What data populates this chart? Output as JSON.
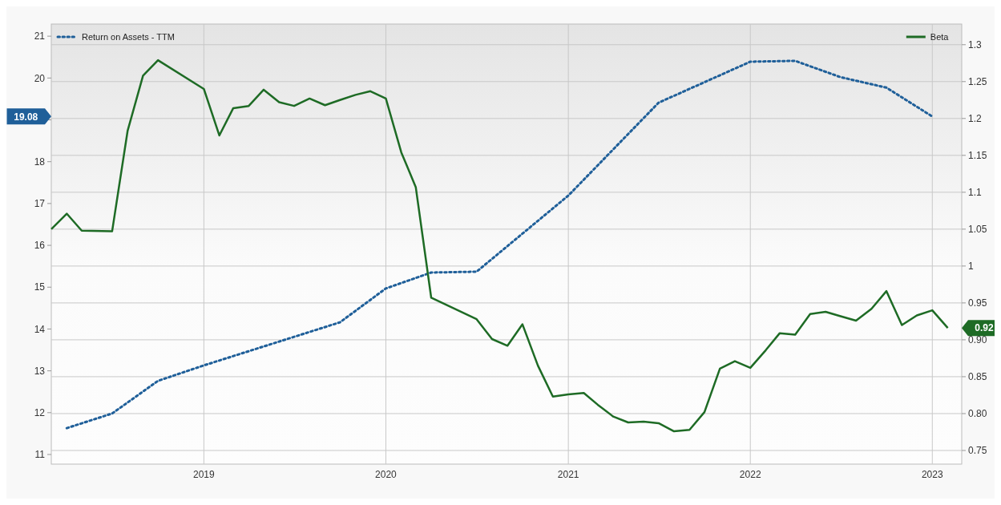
{
  "chart_data": {
    "type": "line",
    "xlim": [
      "2018-03-01",
      "2023-03-01"
    ],
    "xticks": [
      "2019",
      "2020",
      "2021",
      "2022",
      "2023"
    ],
    "ylim": [
      10.77,
      21.29
    ],
    "yticks": [
      11,
      12,
      13,
      14,
      15,
      16,
      17,
      18,
      {
        "value": 19,
        "label": null
      },
      20,
      21
    ],
    "annotations": [
      "19.08",
      "0.92"
    ],
    "y2lim": [
      0.7315,
      1.328
    ],
    "y2ticks": [
      1.3,
      1.25,
      1.2,
      1.15,
      1.1,
      1.05,
      1,
      0.95,
      {
        "value": 0.9,
        "label": "0.90"
      },
      {
        "value": 0.85,
        "label": "0.85"
      },
      {
        "value": 0.8,
        "label": "0.80"
      },
      0.75
    ],
    "grid": true,
    "legend": "top",
    "series": [
      {
        "name": "Return on Assets - TTM",
        "color": "#1f5f99",
        "line_style": "dotted",
        "x": [
          "2018-04",
          "2018-07",
          "2018-10",
          "2019-01",
          "2019-10",
          "2020-01",
          "2020-04",
          "2020-07",
          "2021-01",
          "2021-07",
          "2022-01",
          "2022-04",
          "2022-07",
          "2022-10",
          "2023-01"
        ],
        "values": [
          11.63,
          11.98,
          12.76,
          13.13,
          14.16,
          14.97,
          15.35,
          15.37,
          17.19,
          19.41,
          20.39,
          20.41,
          20.02,
          19.77,
          19.08
        ]
      },
      {
        "name": "Beta",
        "color": "#1e6b25",
        "line_style": "solid",
        "axis": "y2",
        "x": [
          "2018-03",
          "2018-04",
          "2018-05",
          "2018-07",
          "2018-08",
          "2018-09",
          "2018-10",
          "2019-01",
          "2019-02",
          "2019-03",
          "2019-04",
          "2019-05",
          "2019-06",
          "2019-07",
          "2019-08",
          "2019-09",
          "2019-10",
          "2019-11",
          "2019-12",
          "2020-01",
          "2020-02",
          "2020-03",
          "2020-04",
          "2020-07",
          "2020-08",
          "2020-09",
          "2020-10",
          "2020-11",
          "2020-12",
          "2021-01",
          "2021-02",
          "2021-03",
          "2021-04",
          "2021-05",
          "2021-06",
          "2021-07",
          "2021-08",
          "2021-09",
          "2021-10",
          "2021-11",
          "2021-12",
          "2022-01",
          "2022-02",
          "2022-03",
          "2022-04",
          "2022-05",
          "2022-06",
          "2022-07",
          "2022-08",
          "2022-09",
          "2022-10",
          "2022-11",
          "2022-12",
          "2023-01",
          "2023-02"
        ],
        "values": [
          1.05,
          1.071,
          1.048,
          1.047,
          1.183,
          1.258,
          1.279,
          1.24,
          1.177,
          1.214,
          1.217,
          1.239,
          1.222,
          1.217,
          1.227,
          1.218,
          1.225,
          1.232,
          1.237,
          1.227,
          1.154,
          1.107,
          0.957,
          0.928,
          0.901,
          0.892,
          0.921,
          0.865,
          0.823,
          0.826,
          0.828,
          0.812,
          0.796,
          0.788,
          0.789,
          0.787,
          0.776,
          0.778,
          0.802,
          0.861,
          0.871,
          0.862,
          0.886,
          0.909,
          0.907,
          0.935,
          0.938,
          0.932,
          0.926,
          0.942,
          0.966,
          0.92,
          0.933,
          0.94,
          0.916
        ]
      }
    ]
  }
}
